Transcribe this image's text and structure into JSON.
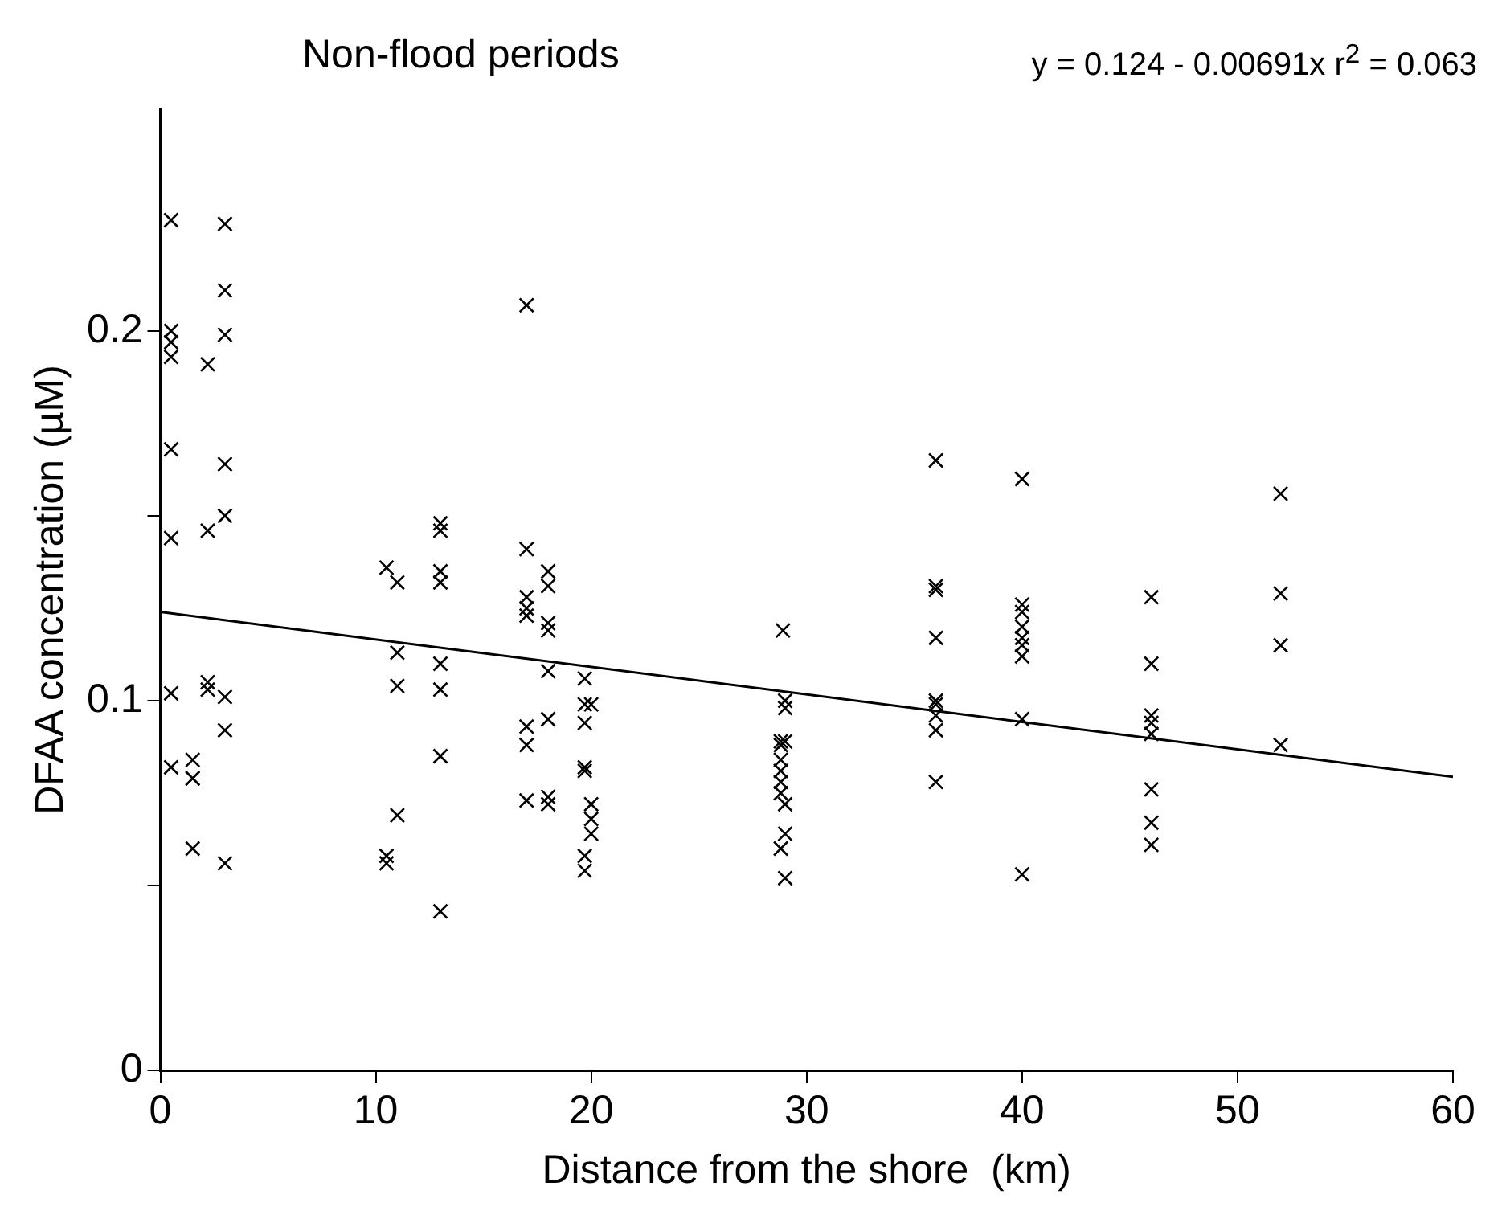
{
  "chart_data": {
    "type": "scatter",
    "title": "Non-flood periods",
    "xlabel": "Distance from the shore  (km)",
    "ylabel": "DFAA concentration (µM)",
    "annotations": [
      "y = 0.124 - 0.00691x  r$^{2}$ = 0.063"
    ],
    "xlim": [
      0,
      60
    ],
    "xticks": [
      0,
      10,
      20,
      30,
      40,
      50,
      60
    ],
    "ylim": [
      0,
      0.26
    ],
    "yticks": [
      0,
      {
        "value": 0.05,
        "label": null
      },
      0.1,
      {
        "value": 0.15,
        "label": null
      },
      0.2
    ],
    "grid": false,
    "legend": false,
    "marker": "cross",
    "series": [
      {
        "type": "scatter",
        "color": "#000000",
        "x": [
          0.5,
          0.5,
          0.5,
          0.5,
          0.5,
          0.5,
          0.5,
          0.5,
          1.5,
          1.5,
          1.5,
          1.5,
          2.2,
          2.2,
          2.2,
          2.2,
          3,
          3,
          3,
          3,
          3,
          3,
          3,
          3,
          10.5,
          10.5,
          10.5,
          11,
          11,
          11,
          11,
          13,
          13,
          13,
          13,
          13,
          13,
          13,
          13,
          17,
          17,
          17,
          17,
          17,
          17,
          17,
          17,
          18,
          18,
          18,
          18,
          18,
          18,
          18,
          18,
          19.7,
          19.7,
          20,
          19.7,
          19.7,
          19.7,
          20,
          20,
          20,
          19.7,
          19.7,
          28.9,
          29,
          29,
          28.8,
          29,
          28.8,
          28.8,
          28.8,
          28.8,
          28.8,
          29,
          29,
          28.8,
          29,
          36,
          36,
          36,
          36,
          36,
          36,
          36,
          36,
          36,
          40,
          40,
          40,
          40,
          40,
          40,
          40,
          40,
          40,
          46,
          46,
          46,
          46,
          46,
          46,
          46,
          46,
          52,
          52,
          52,
          52
        ],
        "values": [
          0.23,
          0.2,
          0.197,
          0.193,
          0.168,
          0.144,
          0.102,
          0.082,
          0.084,
          0.079,
          0.079,
          0.06,
          0.191,
          0.146,
          0.105,
          0.103,
          0.229,
          0.211,
          0.199,
          0.164,
          0.15,
          0.101,
          0.092,
          0.056,
          0.136,
          0.058,
          0.056,
          0.132,
          0.113,
          0.104,
          0.069,
          0.148,
          0.146,
          0.135,
          0.132,
          0.11,
          0.103,
          0.085,
          0.043,
          0.207,
          0.141,
          0.128,
          0.125,
          0.123,
          0.093,
          0.088,
          0.073,
          0.135,
          0.131,
          0.121,
          0.119,
          0.108,
          0.095,
          0.074,
          0.072,
          0.106,
          0.099,
          0.099,
          0.094,
          0.082,
          0.081,
          0.072,
          0.068,
          0.064,
          0.058,
          0.054,
          0.119,
          0.1,
          0.098,
          0.089,
          0.089,
          0.088,
          0.084,
          0.081,
          0.078,
          0.075,
          0.072,
          0.064,
          0.06,
          0.052,
          0.165,
          0.131,
          0.13,
          0.117,
          0.1,
          0.099,
          0.096,
          0.092,
          0.078,
          0.16,
          0.126,
          0.124,
          0.12,
          0.117,
          0.115,
          0.112,
          0.095,
          0.053,
          0.128,
          0.11,
          0.096,
          0.094,
          0.091,
          0.076,
          0.067,
          0.061,
          0.156,
          0.129,
          0.115,
          0.088
        ]
      },
      {
        "type": "line",
        "color": "#000000",
        "marker": "none",
        "x": [
          0,
          60
        ],
        "values": [
          0.124,
          0.0794
        ]
      }
    ]
  }
}
